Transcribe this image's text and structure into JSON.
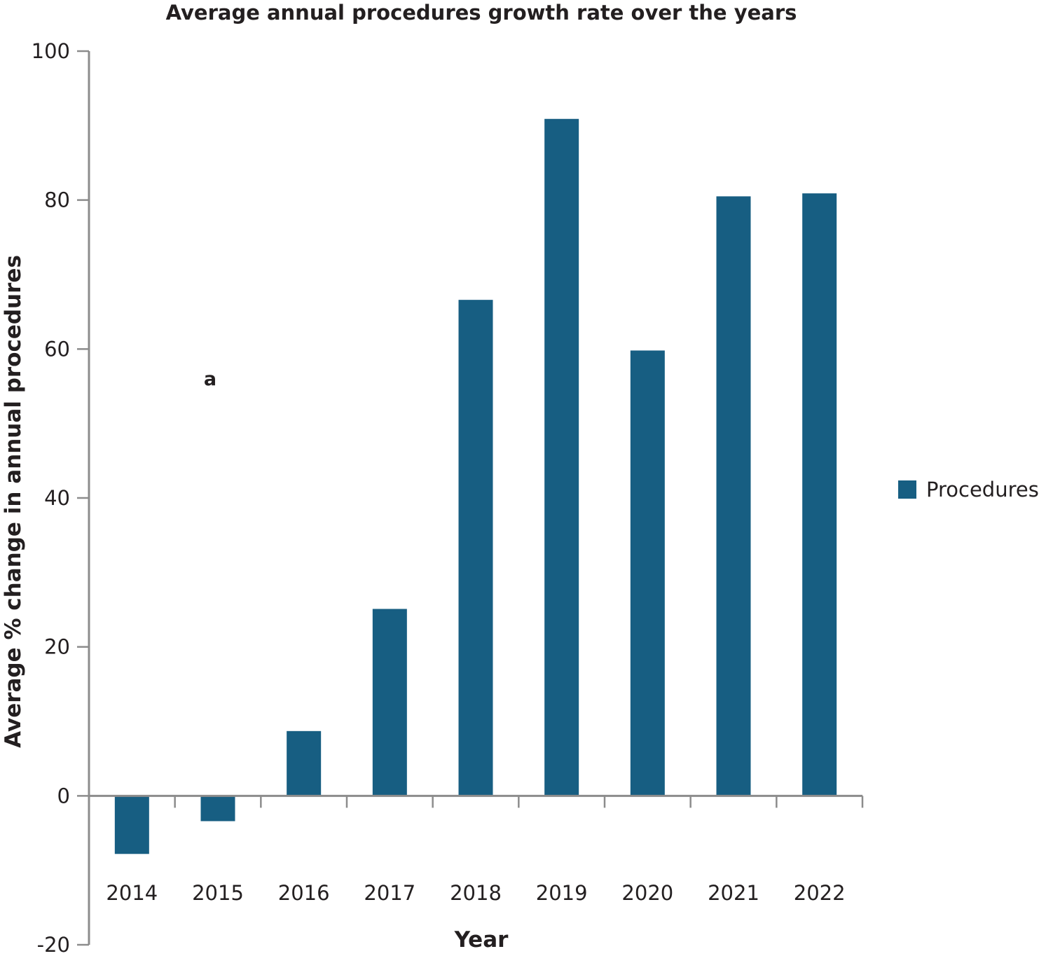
{
  "chart_data": {
    "type": "bar",
    "title": "Average annual procedures growth rate over the years",
    "xlabel": "Year",
    "ylabel": "Average % change in annual procedures",
    "panel_label": "a",
    "categories": [
      "2014",
      "2015",
      "2016",
      "2017",
      "2018",
      "2019",
      "2020",
      "2021",
      "2022"
    ],
    "series": [
      {
        "name": "Procedures",
        "values": [
          -7.8,
          -3.4,
          8.7,
          25.1,
          66.6,
          90.9,
          59.8,
          80.5,
          80.9
        ]
      }
    ],
    "ylim": [
      -20,
      100
    ],
    "yticks": [
      "-20",
      "0",
      "20",
      "40",
      "60",
      "80",
      "100"
    ],
    "legend_position": "right",
    "grid": false,
    "bar_color": "#175e82",
    "axis_color": "#8c8c8c"
  }
}
